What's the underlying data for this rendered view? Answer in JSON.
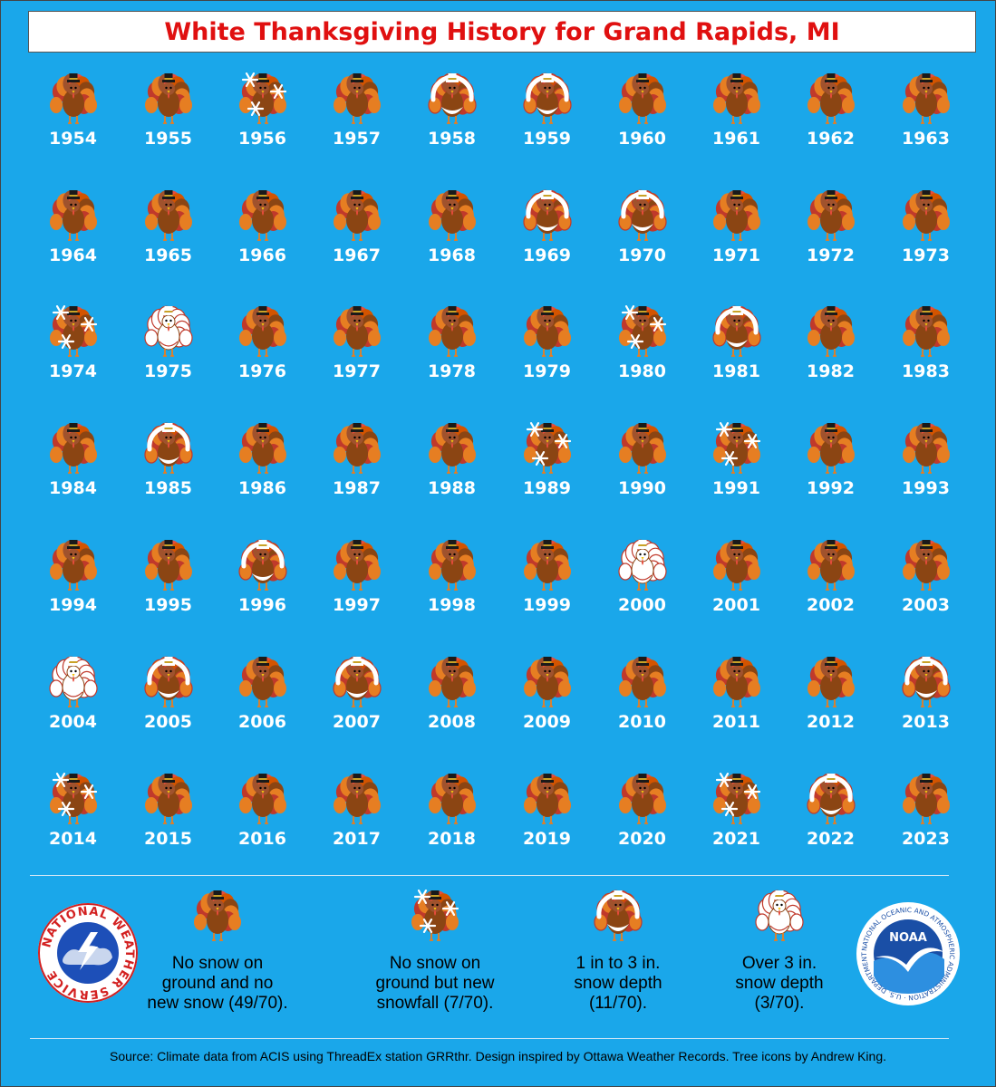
{
  "title": "White Thanksgiving History for Grand Rapids, MI",
  "colors": {
    "background": "#1aa7ea",
    "title": "#e01010",
    "year": "#ffffff"
  },
  "categories": {
    "none": "No snow on ground and no new snow (49/70).",
    "new": "No snow on ground but new snowfall (7/70).",
    "light": "1 in to 3 in. snow depth (11/70).",
    "heavy": "Over 3 in. snow depth (3/70)."
  },
  "legend": [
    {
      "type": "none",
      "lines": [
        "No snow on",
        "ground and no",
        "new snow (49/70)."
      ]
    },
    {
      "type": "new",
      "lines": [
        "No snow on",
        "ground but new",
        "snowfall (7/70)."
      ]
    },
    {
      "type": "light",
      "lines": [
        "1 in to 3 in.",
        "snow depth",
        "(11/70)."
      ]
    },
    {
      "type": "heavy",
      "lines": [
        "Over 3 in.",
        "snow depth",
        "(3/70)."
      ]
    }
  ],
  "years": [
    {
      "year": "1954",
      "type": "none"
    },
    {
      "year": "1955",
      "type": "none"
    },
    {
      "year": "1956",
      "type": "new"
    },
    {
      "year": "1957",
      "type": "none"
    },
    {
      "year": "1958",
      "type": "light"
    },
    {
      "year": "1959",
      "type": "light"
    },
    {
      "year": "1960",
      "type": "none"
    },
    {
      "year": "1961",
      "type": "none"
    },
    {
      "year": "1962",
      "type": "none"
    },
    {
      "year": "1963",
      "type": "none"
    },
    {
      "year": "1964",
      "type": "none"
    },
    {
      "year": "1965",
      "type": "none"
    },
    {
      "year": "1966",
      "type": "none"
    },
    {
      "year": "1967",
      "type": "none"
    },
    {
      "year": "1968",
      "type": "none"
    },
    {
      "year": "1969",
      "type": "light"
    },
    {
      "year": "1970",
      "type": "light"
    },
    {
      "year": "1971",
      "type": "none"
    },
    {
      "year": "1972",
      "type": "none"
    },
    {
      "year": "1973",
      "type": "none"
    },
    {
      "year": "1974",
      "type": "new"
    },
    {
      "year": "1975",
      "type": "heavy"
    },
    {
      "year": "1976",
      "type": "none"
    },
    {
      "year": "1977",
      "type": "none"
    },
    {
      "year": "1978",
      "type": "none"
    },
    {
      "year": "1979",
      "type": "none"
    },
    {
      "year": "1980",
      "type": "new"
    },
    {
      "year": "1981",
      "type": "light"
    },
    {
      "year": "1982",
      "type": "none"
    },
    {
      "year": "1983",
      "type": "none"
    },
    {
      "year": "1984",
      "type": "none"
    },
    {
      "year": "1985",
      "type": "light"
    },
    {
      "year": "1986",
      "type": "none"
    },
    {
      "year": "1987",
      "type": "none"
    },
    {
      "year": "1988",
      "type": "none"
    },
    {
      "year": "1989",
      "type": "new"
    },
    {
      "year": "1990",
      "type": "none"
    },
    {
      "year": "1991",
      "type": "new"
    },
    {
      "year": "1992",
      "type": "none"
    },
    {
      "year": "1993",
      "type": "none"
    },
    {
      "year": "1994",
      "type": "none"
    },
    {
      "year": "1995",
      "type": "none"
    },
    {
      "year": "1996",
      "type": "light"
    },
    {
      "year": "1997",
      "type": "none"
    },
    {
      "year": "1998",
      "type": "none"
    },
    {
      "year": "1999",
      "type": "none"
    },
    {
      "year": "2000",
      "type": "heavy"
    },
    {
      "year": "2001",
      "type": "none"
    },
    {
      "year": "2002",
      "type": "none"
    },
    {
      "year": "2003",
      "type": "none"
    },
    {
      "year": "2004",
      "type": "heavy"
    },
    {
      "year": "2005",
      "type": "light"
    },
    {
      "year": "2006",
      "type": "none"
    },
    {
      "year": "2007",
      "type": "light"
    },
    {
      "year": "2008",
      "type": "none"
    },
    {
      "year": "2009",
      "type": "none"
    },
    {
      "year": "2010",
      "type": "none"
    },
    {
      "year": "2011",
      "type": "none"
    },
    {
      "year": "2012",
      "type": "none"
    },
    {
      "year": "2013",
      "type": "light"
    },
    {
      "year": "2014",
      "type": "new"
    },
    {
      "year": "2015",
      "type": "none"
    },
    {
      "year": "2016",
      "type": "none"
    },
    {
      "year": "2017",
      "type": "none"
    },
    {
      "year": "2018",
      "type": "none"
    },
    {
      "year": "2019",
      "type": "none"
    },
    {
      "year": "2020",
      "type": "none"
    },
    {
      "year": "2021",
      "type": "new"
    },
    {
      "year": "2022",
      "type": "light"
    },
    {
      "year": "2023",
      "type": "none"
    }
  ],
  "source": "Source: Climate data from ACIS using ThreadEx station GRRthr. Design inspired by Ottawa Weather Records. Tree icons by Andrew King.",
  "nws_logo": {
    "text": "NATIONAL WEATHER SERVICE",
    "icon": "nws-logo-icon"
  },
  "noaa_logo": {
    "text": "NATIONAL OCEANIC AND ATMOSPHERIC ADMINISTRATION · U.S. DEPARTMENT OF COMMERCE",
    "center": "NOAA",
    "icon": "noaa-logo-icon"
  }
}
